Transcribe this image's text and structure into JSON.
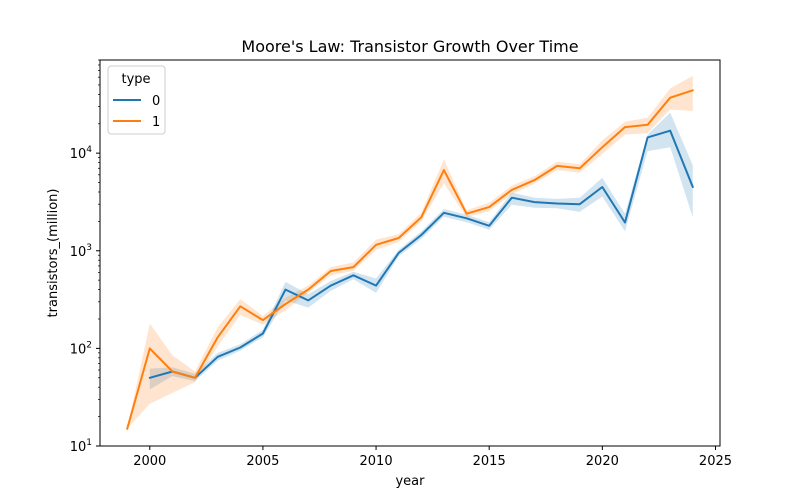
{
  "chart_data": {
    "type": "line",
    "title": "Moore's Law: Transistor Growth Over Time",
    "xlabel": "year",
    "ylabel": "transistors_(million)",
    "xlim": [
      1997.8,
      2025.2
    ],
    "ylim": [
      10,
      90000
    ],
    "yscale": "log",
    "grid": false,
    "x_ticks": [
      2000,
      2005,
      2010,
      2015,
      2020,
      2025
    ],
    "y_ticks": [
      {
        "value": 10,
        "base": "10",
        "exp": "1"
      },
      {
        "value": 100,
        "base": "10",
        "exp": "2"
      },
      {
        "value": 1000,
        "base": "10",
        "exp": "3"
      },
      {
        "value": 10000,
        "base": "10",
        "exp": "4"
      }
    ],
    "legend": {
      "title": "type",
      "position": "top-left"
    },
    "series": [
      {
        "name": "0",
        "color": "#1f77b4",
        "x": [
          2000,
          2001,
          2002,
          2003,
          2004,
          2005,
          2006,
          2007,
          2008,
          2009,
          2010,
          2011,
          2012,
          2013,
          2014,
          2015,
          2016,
          2017,
          2018,
          2019,
          2020,
          2021,
          2022,
          2023,
          2024
        ],
        "y": [
          50,
          58,
          50,
          82,
          102,
          142,
          400,
          310,
          440,
          560,
          440,
          950,
          1450,
          2450,
          2150,
          1800,
          3500,
          3150,
          3050,
          3000,
          4500,
          1950,
          14500,
          17000,
          4500
        ],
        "lower": [
          38,
          52,
          46,
          75,
          95,
          130,
          310,
          262,
          390,
          510,
          370,
          880,
          1320,
          2230,
          1960,
          1640,
          2960,
          2760,
          2720,
          2500,
          3600,
          1580,
          10500,
          11500,
          2200
        ],
        "upper": [
          62,
          64,
          55,
          90,
          110,
          155,
          480,
          360,
          490,
          610,
          520,
          1020,
          1580,
          2680,
          2340,
          1960,
          3950,
          3500,
          3400,
          3500,
          5600,
          2400,
          15500,
          26000,
          7500
        ]
      },
      {
        "name": "1",
        "color": "#ff7f0e",
        "x": [
          1999,
          2000,
          2001,
          2002,
          2003,
          2004,
          2005,
          2006,
          2007,
          2008,
          2009,
          2010,
          2011,
          2012,
          2013,
          2014,
          2015,
          2016,
          2017,
          2018,
          2019,
          2020,
          2021,
          2022,
          2023,
          2024
        ],
        "y": [
          15,
          100,
          58,
          50,
          130,
          270,
          195,
          285,
          400,
          620,
          680,
          1150,
          1350,
          2200,
          6700,
          2400,
          2800,
          4200,
          5300,
          7400,
          7000,
          11500,
          18500,
          19500,
          37000,
          44000
        ],
        "lower": [
          15,
          27,
          35,
          45,
          105,
          220,
          175,
          245,
          370,
          560,
          620,
          1020,
          1230,
          2000,
          4900,
          2200,
          2550,
          3800,
          4850,
          6700,
          6300,
          9800,
          15500,
          16000,
          28000,
          27000
        ],
        "upper": [
          15,
          180,
          85,
          58,
          165,
          320,
          215,
          330,
          440,
          680,
          760,
          1300,
          1480,
          2450,
          8600,
          2600,
          3100,
          4650,
          5800,
          8200,
          7700,
          13500,
          21000,
          23000,
          46000,
          62000
        ]
      }
    ]
  }
}
